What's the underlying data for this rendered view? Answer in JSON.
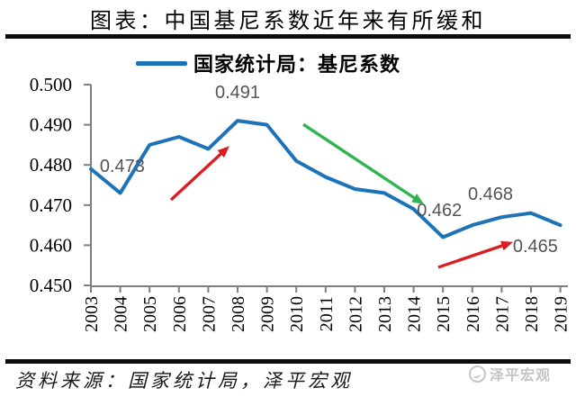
{
  "title": "图表：中国基尼系数近年来有所缓和",
  "legend": {
    "label": "国家统计局：基尼系数"
  },
  "footer": {
    "source": "资料来源：国家统计局，泽平宏观",
    "watermark": "泽平宏观"
  },
  "chart_data": {
    "type": "line",
    "title": "图表：中国基尼系数近年来有所缓和",
    "xlabel": "",
    "ylabel": "",
    "categories": [
      "2003",
      "2004",
      "2005",
      "2006",
      "2007",
      "2008",
      "2009",
      "2010",
      "2011",
      "2012",
      "2013",
      "2014",
      "2015",
      "2016",
      "2017",
      "2018",
      "2019"
    ],
    "series": [
      {
        "name": "国家统计局：基尼系数",
        "color": "#1d72b8",
        "values": [
          0.479,
          0.473,
          0.485,
          0.487,
          0.484,
          0.491,
          0.49,
          0.481,
          0.477,
          0.474,
          0.473,
          0.469,
          0.462,
          0.465,
          0.467,
          0.468,
          0.465
        ]
      }
    ],
    "ylim": [
      0.45,
      0.5
    ],
    "yticks": [
      "0.450",
      "0.460",
      "0.470",
      "0.480",
      "0.490",
      "0.500"
    ],
    "grid": false,
    "legend_position": "top",
    "colors": {
      "axis": "#7f7f7f",
      "data_label": "#545454"
    },
    "point_labels": [
      {
        "text": "0.473",
        "year": 2004.07,
        "value": 0.4798
      },
      {
        "text": "0.491",
        "year": 2008.0,
        "value": 0.4982
      },
      {
        "text": "0.462",
        "year": 2014.88,
        "value": 0.4688
      },
      {
        "text": "0.468",
        "year": 2016.62,
        "value": 0.4729
      },
      {
        "text": "0.465",
        "year": 2018.15,
        "value": 0.4599
      }
    ],
    "annotations": [
      {
        "type": "arrow",
        "color": "#dd1d24",
        "from": {
          "year": 2005.73,
          "value": 0.4713
        },
        "to": {
          "year": 2007.72,
          "value": 0.4847
        }
      },
      {
        "type": "arrow",
        "color": "#2fb44e",
        "from": {
          "year": 2010.24,
          "value": 0.4901
        },
        "to": {
          "year": 2014.35,
          "value": 0.4702
        }
      },
      {
        "type": "arrow",
        "color": "#dd1d24",
        "from": {
          "year": 2014.84,
          "value": 0.4545
        },
        "to": {
          "year": 2017.39,
          "value": 0.4608
        }
      }
    ]
  }
}
